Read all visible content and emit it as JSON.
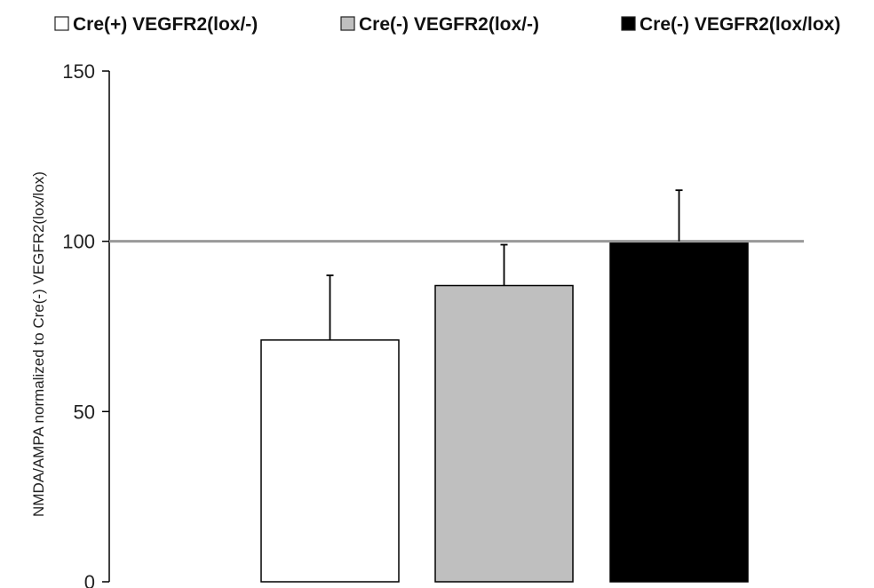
{
  "chart_data": {
    "type": "bar",
    "ylabel": "NMDA/AMPA normalized to Cre(-) VEGFR2(lox/lox)",
    "ylim": [
      0,
      150
    ],
    "yticks": [
      0,
      50,
      100,
      150
    ],
    "reference_line": 100,
    "reference_line_color": "#999999",
    "legend_position": "top",
    "grid": false,
    "series": [
      {
        "name": "Cre(+) VEGFR2(lox/-)",
        "value": 71,
        "error": 19,
        "color": "#ffffff"
      },
      {
        "name": "Cre(-) VEGFR2(lox/-)",
        "value": 87,
        "error": 12,
        "color": "#bfbfbf"
      },
      {
        "name": "Cre(-) VEGFR2(lox/lox)",
        "value": 100,
        "error": 15,
        "color": "#000000"
      }
    ]
  }
}
